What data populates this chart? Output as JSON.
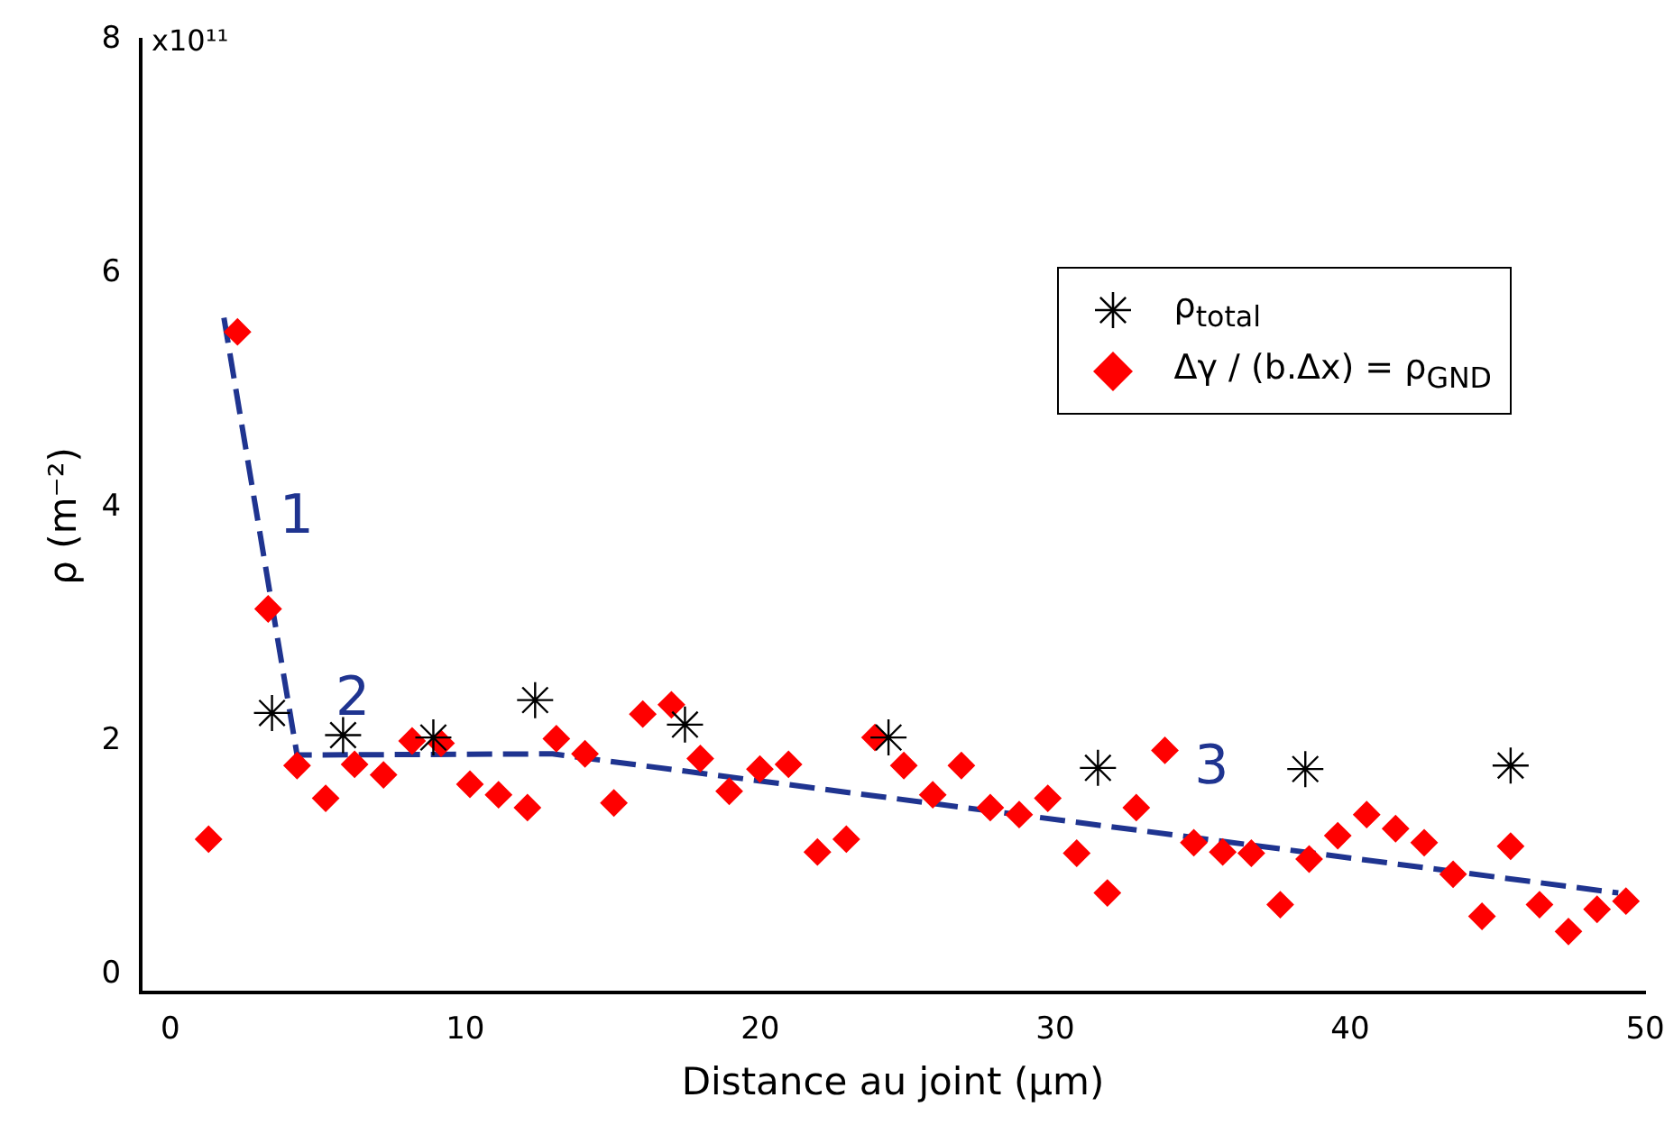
{
  "chart_data": {
    "type": "scatter",
    "xlabel": "Distance au joint (μm)",
    "ylabel": "ρ (m⁻²)",
    "xlim": [
      -1,
      50
    ],
    "xticks": [
      0,
      10,
      20,
      30,
      40,
      50
    ],
    "ylim": [
      -0.15,
      8
    ],
    "yticks": [
      0,
      2,
      4,
      6,
      8
    ],
    "grid": false,
    "legend": "top right",
    "series": [
      {
        "name": "ρ$_{total}$",
        "type": "scatter",
        "marker": "cross",
        "color": "#000000",
        "x": [
          3.45,
          5.86,
          8.92,
          12.37,
          17.45,
          24.35,
          31.45,
          38.48,
          45.44
        ],
        "values": [
          2.24,
          2.05,
          2.03,
          2.35,
          2.14,
          2.03,
          1.77,
          1.76,
          1.79
        ]
      },
      {
        "name": "Δγ / (b.Δx) = ρ$_{GND}$",
        "type": "scatter",
        "marker": "diamond",
        "color": "#ff0000",
        "x": [
          1.3,
          2.28,
          3.32,
          4.3,
          5.27,
          6.25,
          7.23,
          8.2,
          9.18,
          10.16,
          11.13,
          12.11,
          13.09,
          14.06,
          15.04,
          16.02,
          16.99,
          17.97,
          18.95,
          19.99,
          20.96,
          21.94,
          22.92,
          23.89,
          24.87,
          25.85,
          26.82,
          27.8,
          28.78,
          29.75,
          30.73,
          31.77,
          32.75,
          33.72,
          34.7,
          35.68,
          36.65,
          37.63,
          38.61,
          39.58,
          40.56,
          41.54,
          42.51,
          43.49,
          44.47,
          45.44,
          46.42,
          47.4,
          48.37,
          49.35
        ],
        "values": [
          1.16,
          5.5,
          3.13,
          1.79,
          1.51,
          1.8,
          1.71,
          2.0,
          1.98,
          1.63,
          1.54,
          1.43,
          2.02,
          1.89,
          1.47,
          2.23,
          2.31,
          1.85,
          1.57,
          1.76,
          1.8,
          1.05,
          1.16,
          2.03,
          1.79,
          1.54,
          1.79,
          1.43,
          1.37,
          1.51,
          1.04,
          0.7,
          1.43,
          1.92,
          1.13,
          1.05,
          1.04,
          0.6,
          0.99,
          1.19,
          1.37,
          1.25,
          1.13,
          0.86,
          0.5,
          1.1,
          0.6,
          0.37,
          0.56,
          0.63
        ]
      },
      {
        "type": "line",
        "marker": "none",
        "line_style": "dashed",
        "color": "#1f3490",
        "x": [
          1.82,
          4.3,
          12.96,
          49.09
        ],
        "values": [
          5.62,
          1.88,
          1.89,
          0.7
        ]
      }
    ],
    "annotations": [
      "1",
      "2",
      "3",
      "x10¹¹"
    ]
  }
}
